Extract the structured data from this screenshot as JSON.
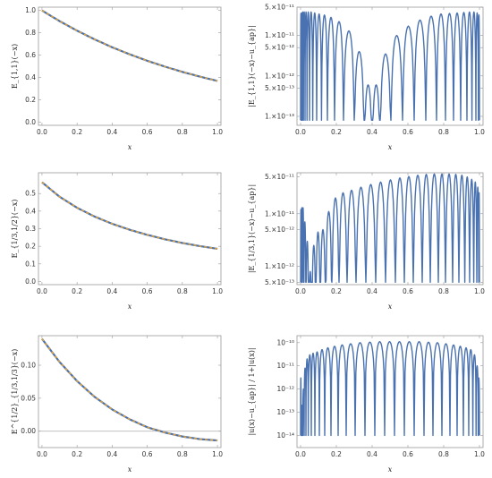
{
  "chart_data": [
    {
      "id": "p1",
      "type": "line",
      "xlabel": "x",
      "ylabel": "E_{1,1}(−x)",
      "xlim": [
        0,
        1
      ],
      "ylim": [
        0,
        1
      ],
      "yscale": "linear",
      "xticks": [
        "0.0",
        "0.2",
        "0.4",
        "0.6",
        "0.8",
        "1.0"
      ],
      "yticks": [
        {
          "v": 0.0,
          "t": "0.0"
        },
        {
          "v": 0.2,
          "t": "0.2"
        },
        {
          "v": 0.4,
          "t": "0.4"
        },
        {
          "v": 0.6,
          "t": "0.6"
        },
        {
          "v": 0.8,
          "t": "0.8"
        },
        {
          "v": 1.0,
          "t": "1.0"
        }
      ],
      "x": [
        0,
        0.1,
        0.2,
        0.3,
        0.4,
        0.5,
        0.6,
        0.7,
        0.8,
        0.9,
        1.0
      ],
      "series": [
        {
          "values": [
            1.0,
            0.905,
            0.819,
            0.741,
            0.67,
            0.607,
            0.549,
            0.497,
            0.449,
            0.407,
            0.368
          ],
          "style": "solid",
          "color": "#4a72b0"
        },
        {
          "values": [
            1.0,
            0.905,
            0.819,
            0.741,
            0.67,
            0.607,
            0.549,
            0.497,
            0.449,
            0.407,
            0.368
          ],
          "style": "dashed",
          "color": "#e0a23a"
        }
      ]
    },
    {
      "id": "p2",
      "type": "line",
      "xlabel": "x",
      "ylabel": "|E_{1,1}(−x)−u_{ap}|",
      "xlim": [
        0,
        1
      ],
      "ylim": [
        6e-14,
        5e-11
      ],
      "yscale": "log",
      "xticks": [
        "0.0",
        "0.2",
        "0.4",
        "0.6",
        "0.8",
        "1.0"
      ],
      "yticks": [
        {
          "v": 1e-13,
          "t": "1.×10⁻¹³"
        },
        {
          "v": 5e-13,
          "t": "5.×10⁻¹³"
        },
        {
          "v": 1e-12,
          "t": "1.×10⁻¹²"
        },
        {
          "v": 5e-12,
          "t": "5.×10⁻¹²"
        },
        {
          "v": 1e-11,
          "t": "1.×10⁻¹¹"
        },
        {
          "v": 5e-11,
          "t": "5.×10⁻¹¹"
        }
      ],
      "arches": [
        {
          "a": 0.0,
          "b": 0.004,
          "h": 3.5e-11
        },
        {
          "a": 0.004,
          "b": 0.009,
          "h": 3.6e-11
        },
        {
          "a": 0.009,
          "b": 0.016,
          "h": 3.8e-11
        },
        {
          "a": 0.016,
          "b": 0.025,
          "h": 3.8e-11
        },
        {
          "a": 0.025,
          "b": 0.036,
          "h": 3.8e-11
        },
        {
          "a": 0.036,
          "b": 0.05,
          "h": 3.8e-11
        },
        {
          "a": 0.05,
          "b": 0.068,
          "h": 3.8e-11
        },
        {
          "a": 0.068,
          "b": 0.09,
          "h": 3.6e-11
        },
        {
          "a": 0.09,
          "b": 0.117,
          "h": 3.4e-11
        },
        {
          "a": 0.117,
          "b": 0.15,
          "h": 3.2e-11
        },
        {
          "a": 0.15,
          "b": 0.19,
          "h": 2.8e-11
        },
        {
          "a": 0.19,
          "b": 0.24,
          "h": 2.2e-11
        },
        {
          "a": 0.24,
          "b": 0.3,
          "h": 1.3e-11
        },
        {
          "a": 0.3,
          "b": 0.355,
          "h": 4e-12
        },
        {
          "a": 0.355,
          "b": 0.4,
          "h": 6e-13
        },
        {
          "a": 0.4,
          "b": 0.445,
          "h": 6e-13
        },
        {
          "a": 0.445,
          "b": 0.505,
          "h": 3.5e-12
        },
        {
          "a": 0.505,
          "b": 0.57,
          "h": 1e-11
        },
        {
          "a": 0.57,
          "b": 0.635,
          "h": 1.7e-11
        },
        {
          "a": 0.635,
          "b": 0.7,
          "h": 2.4e-11
        },
        {
          "a": 0.7,
          "b": 0.76,
          "h": 3e-11
        },
        {
          "a": 0.76,
          "b": 0.81,
          "h": 3.4e-11
        },
        {
          "a": 0.81,
          "b": 0.855,
          "h": 3.5e-11
        },
        {
          "a": 0.855,
          "b": 0.895,
          "h": 3.6e-11
        },
        {
          "a": 0.895,
          "b": 0.93,
          "h": 3.7e-11
        },
        {
          "a": 0.93,
          "b": 0.958,
          "h": 3.8e-11
        },
        {
          "a": 0.958,
          "b": 0.98,
          "h": 3.8e-11
        },
        {
          "a": 0.98,
          "b": 0.994,
          "h": 3.6e-11
        },
        {
          "a": 0.994,
          "b": 1.0,
          "h": 3.2e-11
        }
      ],
      "floor": 8e-14
    },
    {
      "id": "p3",
      "type": "line",
      "xlabel": "x",
      "ylabel": "E_{1/3,1/2}(−x)",
      "xlim": [
        0,
        1
      ],
      "ylim": [
        0,
        0.6
      ],
      "yscale": "linear",
      "xticks": [
        "0.0",
        "0.2",
        "0.4",
        "0.6",
        "0.8",
        "1.0"
      ],
      "yticks": [
        {
          "v": 0.0,
          "t": "0.0"
        },
        {
          "v": 0.1,
          "t": "0.1"
        },
        {
          "v": 0.2,
          "t": "0.2"
        },
        {
          "v": 0.3,
          "t": "0.3"
        },
        {
          "v": 0.4,
          "t": "0.4"
        },
        {
          "v": 0.5,
          "t": "0.5"
        }
      ],
      "x": [
        0,
        0.1,
        0.2,
        0.3,
        0.4,
        0.5,
        0.6,
        0.7,
        0.8,
        0.9,
        1.0
      ],
      "series": [
        {
          "values": [
            0.564,
            0.482,
            0.419,
            0.369,
            0.328,
            0.294,
            0.265,
            0.24,
            0.219,
            0.201,
            0.186
          ],
          "style": "solid",
          "color": "#4a72b0"
        },
        {
          "values": [
            0.564,
            0.482,
            0.419,
            0.369,
            0.328,
            0.294,
            0.265,
            0.24,
            0.219,
            0.201,
            0.186
          ],
          "style": "dashed",
          "color": "#e0a23a"
        }
      ]
    },
    {
      "id": "p4",
      "type": "line",
      "xlabel": "x",
      "ylabel": "|E_{1/3,1}(−x)−u_{ap}|",
      "xlim": [
        0,
        1
      ],
      "ylim": [
        4.5e-13,
        6e-11
      ],
      "yscale": "log",
      "xticks": [
        "0.0",
        "0.2",
        "0.4",
        "0.6",
        "0.8",
        "1.0"
      ],
      "yticks": [
        {
          "v": 5e-13,
          "t": "5.×10⁻¹³"
        },
        {
          "v": 1e-12,
          "t": "1.×10⁻¹²"
        },
        {
          "v": 5e-12,
          "t": "5.×10⁻¹²"
        },
        {
          "v": 1e-11,
          "t": "1.×10⁻¹¹"
        },
        {
          "v": 5e-11,
          "t": "5.×10⁻¹¹"
        }
      ],
      "arches": [
        {
          "a": 0.0,
          "b": 0.004,
          "h": 1.2e-11
        },
        {
          "a": 0.004,
          "b": 0.01,
          "h": 1.3e-11
        },
        {
          "a": 0.01,
          "b": 0.018,
          "h": 1.3e-11
        },
        {
          "a": 0.018,
          "b": 0.03,
          "h": 7e-12
        },
        {
          "a": 0.03,
          "b": 0.045,
          "h": 3e-12
        },
        {
          "a": 0.045,
          "b": 0.063,
          "h": 8e-13
        },
        {
          "a": 0.063,
          "b": 0.085,
          "h": 2.5e-12
        },
        {
          "a": 0.085,
          "b": 0.11,
          "h": 4.5e-12
        },
        {
          "a": 0.11,
          "b": 0.14,
          "h": 5e-12
        },
        {
          "a": 0.14,
          "b": 0.175,
          "h": 1.1e-11
        },
        {
          "a": 0.175,
          "b": 0.215,
          "h": 2e-11
        },
        {
          "a": 0.215,
          "b": 0.26,
          "h": 2.5e-11
        },
        {
          "a": 0.26,
          "b": 0.31,
          "h": 2.8e-11
        },
        {
          "a": 0.31,
          "b": 0.365,
          "h": 3.2e-11
        },
        {
          "a": 0.365,
          "b": 0.42,
          "h": 3.6e-11
        },
        {
          "a": 0.42,
          "b": 0.475,
          "h": 4e-11
        },
        {
          "a": 0.475,
          "b": 0.53,
          "h": 4.4e-11
        },
        {
          "a": 0.53,
          "b": 0.58,
          "h": 4.8e-11
        },
        {
          "a": 0.58,
          "b": 0.63,
          "h": 5.1e-11
        },
        {
          "a": 0.63,
          "b": 0.68,
          "h": 5.4e-11
        },
        {
          "a": 0.68,
          "b": 0.725,
          "h": 5.6e-11
        },
        {
          "a": 0.725,
          "b": 0.77,
          "h": 5.7e-11
        },
        {
          "a": 0.77,
          "b": 0.81,
          "h": 5.7e-11
        },
        {
          "a": 0.81,
          "b": 0.85,
          "h": 5.7e-11
        },
        {
          "a": 0.85,
          "b": 0.885,
          "h": 5.6e-11
        },
        {
          "a": 0.885,
          "b": 0.918,
          "h": 5.4e-11
        },
        {
          "a": 0.918,
          "b": 0.945,
          "h": 5e-11
        },
        {
          "a": 0.945,
          "b": 0.968,
          "h": 4.5e-11
        },
        {
          "a": 0.968,
          "b": 0.985,
          "h": 4e-11
        },
        {
          "a": 0.985,
          "b": 0.996,
          "h": 3.2e-11
        },
        {
          "a": 0.996,
          "b": 1.0,
          "h": 2.5e-11
        }
      ],
      "floor": 5e-13
    },
    {
      "id": "p5",
      "type": "line",
      "xlabel": "x",
      "ylabel": "E^{1/2}_{1/3,1/3}(−x)",
      "xlim": [
        0,
        1
      ],
      "ylim": [
        -0.02,
        0.14
      ],
      "yscale": "linear",
      "xticks": [
        "0.0",
        "0.2",
        "0.4",
        "0.6",
        "0.8",
        "1.0"
      ],
      "yticks": [
        {
          "v": 0.0,
          "t": "0.00"
        },
        {
          "v": 0.05,
          "t": "0.05"
        },
        {
          "v": 0.1,
          "t": "0.10"
        }
      ],
      "zeroline": true,
      "x": [
        0,
        0.1,
        0.2,
        0.3,
        0.4,
        0.5,
        0.6,
        0.7,
        0.8,
        0.9,
        1.0
      ],
      "series": [
        {
          "values": [
            0.14,
            0.105,
            0.076,
            0.052,
            0.033,
            0.018,
            0.006,
            -0.002,
            -0.008,
            -0.012,
            -0.014
          ],
          "style": "solid",
          "color": "#4a72b0"
        },
        {
          "values": [
            0.14,
            0.105,
            0.076,
            0.052,
            0.033,
            0.018,
            0.006,
            -0.002,
            -0.008,
            -0.012,
            -0.014
          ],
          "style": "dashed",
          "color": "#e0a23a"
        }
      ]
    },
    {
      "id": "p6",
      "type": "line",
      "xlabel": "x",
      "ylabel": "|u(x)−u_{ap}| / 1+|u(x)|",
      "xlim": [
        0,
        1
      ],
      "ylim": [
        3e-15,
        2e-10
      ],
      "yscale": "log",
      "xticks": [
        "0.0",
        "0.2",
        "0.4",
        "0.6",
        "0.8",
        "1.0"
      ],
      "yticks": [
        {
          "v": 1e-14,
          "t": "10⁻¹⁴"
        },
        {
          "v": 1e-13,
          "t": "10⁻¹³"
        },
        {
          "v": 1e-12,
          "t": "10⁻¹²"
        },
        {
          "v": 1e-11,
          "t": "10⁻¹¹"
        },
        {
          "v": 1e-10,
          "t": "10⁻¹⁰"
        }
      ],
      "arches": [
        {
          "a": 0.0,
          "b": 0.003,
          "h": 3e-12
        },
        {
          "a": 0.003,
          "b": 0.007,
          "h": 4e-14
        },
        {
          "a": 0.007,
          "b": 0.012,
          "h": 2e-13
        },
        {
          "a": 0.012,
          "b": 0.02,
          "h": 1e-12
        },
        {
          "a": 0.02,
          "b": 0.03,
          "h": 8e-12
        },
        {
          "a": 0.03,
          "b": 0.043,
          "h": 2e-11
        },
        {
          "a": 0.043,
          "b": 0.06,
          "h": 3e-11
        },
        {
          "a": 0.06,
          "b": 0.08,
          "h": 3.5e-11
        },
        {
          "a": 0.08,
          "b": 0.105,
          "h": 4e-11
        },
        {
          "a": 0.105,
          "b": 0.135,
          "h": 5e-11
        },
        {
          "a": 0.135,
          "b": 0.17,
          "h": 6e-11
        },
        {
          "a": 0.17,
          "b": 0.21,
          "h": 7e-11
        },
        {
          "a": 0.21,
          "b": 0.255,
          "h": 8e-11
        },
        {
          "a": 0.255,
          "b": 0.305,
          "h": 9e-11
        },
        {
          "a": 0.305,
          "b": 0.36,
          "h": 1e-10
        },
        {
          "a": 0.36,
          "b": 0.415,
          "h": 1.05e-10
        },
        {
          "a": 0.415,
          "b": 0.47,
          "h": 1.1e-10
        },
        {
          "a": 0.47,
          "b": 0.525,
          "h": 1.1e-10
        },
        {
          "a": 0.525,
          "b": 0.58,
          "h": 1.1e-10
        },
        {
          "a": 0.58,
          "b": 0.635,
          "h": 1.1e-10
        },
        {
          "a": 0.635,
          "b": 0.69,
          "h": 1.1e-10
        },
        {
          "a": 0.69,
          "b": 0.74,
          "h": 1.05e-10
        },
        {
          "a": 0.74,
          "b": 0.79,
          "h": 1e-10
        },
        {
          "a": 0.79,
          "b": 0.835,
          "h": 9e-11
        },
        {
          "a": 0.835,
          "b": 0.875,
          "h": 8e-11
        },
        {
          "a": 0.875,
          "b": 0.91,
          "h": 7e-11
        },
        {
          "a": 0.91,
          "b": 0.94,
          "h": 6e-11
        },
        {
          "a": 0.94,
          "b": 0.963,
          "h": 5e-11
        },
        {
          "a": 0.963,
          "b": 0.981,
          "h": 3e-11
        },
        {
          "a": 0.981,
          "b": 0.993,
          "h": 1e-11
        },
        {
          "a": 0.993,
          "b": 1.0,
          "h": 3e-12
        }
      ],
      "floor": 1e-14
    }
  ]
}
